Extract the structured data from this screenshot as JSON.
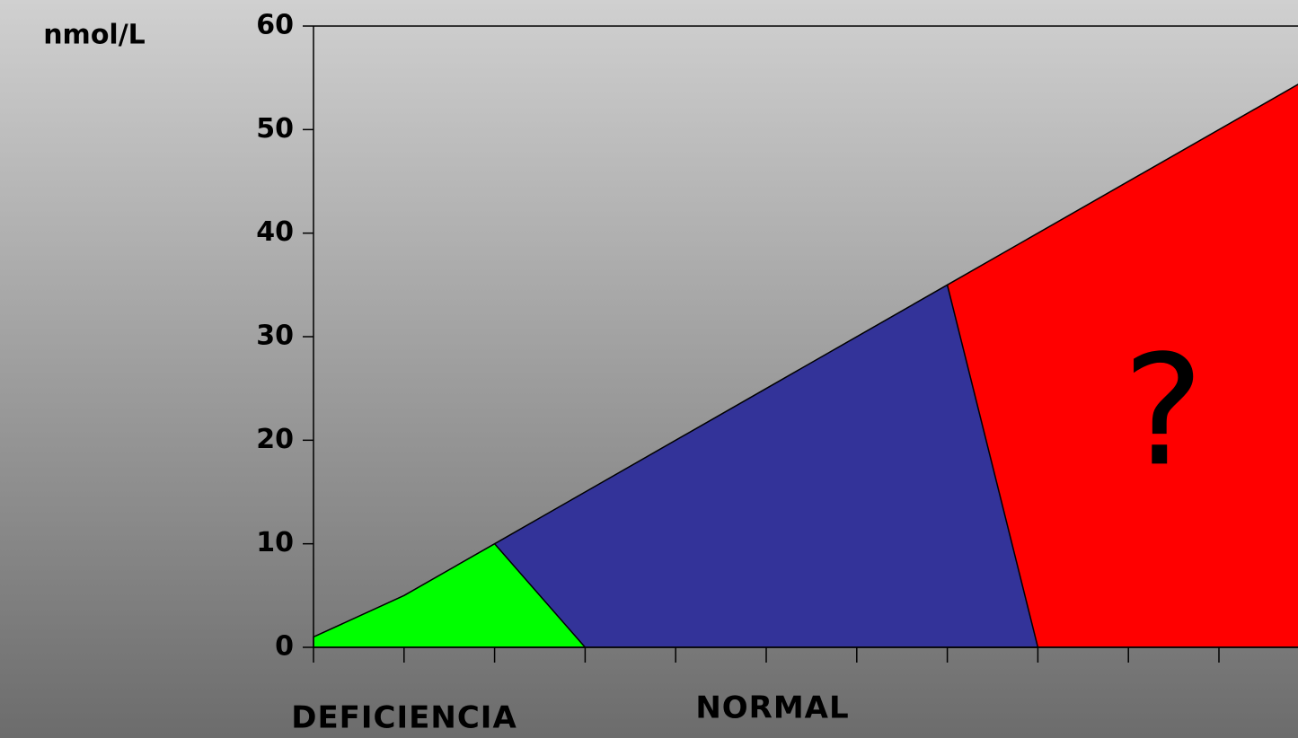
{
  "chart_data": {
    "type": "area",
    "y_label": "nmol/L",
    "annotations": [
      "DEFICIENCIA",
      "NORMAL",
      "?"
    ],
    "series": [
      {
        "color": "#ff0000",
        "x": [
          7,
          11,
          11
        ],
        "values": [
          35,
          55,
          0
        ]
      },
      {
        "color": "#333399",
        "x": [
          2,
          3,
          5,
          7,
          8
        ],
        "values": [
          10,
          15,
          25,
          35,
          0
        ]
      },
      {
        "color": "#00ff00",
        "x": [
          0,
          1,
          2,
          3
        ],
        "values": [
          1,
          5,
          10,
          0
        ]
      }
    ],
    "xlim": [
      0,
      11
    ],
    "xticks": [
      0,
      1,
      2,
      3,
      4,
      5,
      6,
      7,
      8,
      9,
      10
    ],
    "ylim": [
      0,
      60
    ],
    "yticks": [
      0,
      10,
      20,
      30,
      40,
      50,
      60
    ]
  }
}
